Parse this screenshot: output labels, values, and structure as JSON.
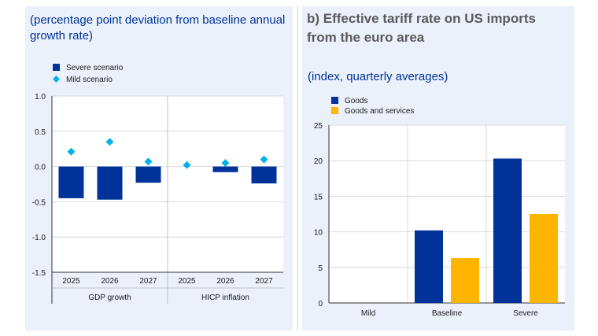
{
  "colors": {
    "severe": "#003299",
    "mild": "#00b1ea",
    "goods": "#003299",
    "goods_services": "#ffb400",
    "text_blue": "#003299",
    "title_grey": "#5a5a5a"
  },
  "left_panel": {
    "subtitle_line1": "(percentage point deviation from baseline annual",
    "subtitle_line2": "growth rate)"
  },
  "right_panel": {
    "title_line1": "b) Effective tariff rate on US imports",
    "title_line2": "from the euro area",
    "subtitle": "(index, quarterly averages)"
  },
  "chart_data": [
    {
      "type": "bar",
      "ylim": [
        -1.5,
        1.0
      ],
      "yticks": [
        "1.0",
        "0.5",
        "0.0",
        "-0.5",
        "-1.0",
        "-1.5"
      ],
      "groups": [
        "GDP growth",
        "HICP inflation"
      ],
      "categories": [
        "2025",
        "2026",
        "2027",
        "2025",
        "2026",
        "2027"
      ],
      "series": [
        {
          "name": "Severe scenario",
          "marker": "bar",
          "values": [
            -0.45,
            -0.47,
            -0.23,
            0.0,
            -0.08,
            -0.24
          ]
        },
        {
          "name": "Mild scenario",
          "marker": "diamond",
          "values": [
            0.21,
            0.35,
            0.07,
            0.02,
            0.05,
            0.1
          ]
        }
      ],
      "legend": "top-left",
      "grid": true
    },
    {
      "type": "bar",
      "ylim": [
        0,
        25
      ],
      "yticks": [
        "25",
        "20",
        "15",
        "10",
        "5",
        "0"
      ],
      "categories": [
        "Mild",
        "Baseline",
        "Severe"
      ],
      "series": [
        {
          "name": "Goods",
          "values": [
            0,
            10.2,
            20.3
          ]
        },
        {
          "name": "Goods and services",
          "values": [
            0,
            6.3,
            12.5
          ]
        }
      ],
      "legend": "top-left",
      "grid": true
    }
  ]
}
